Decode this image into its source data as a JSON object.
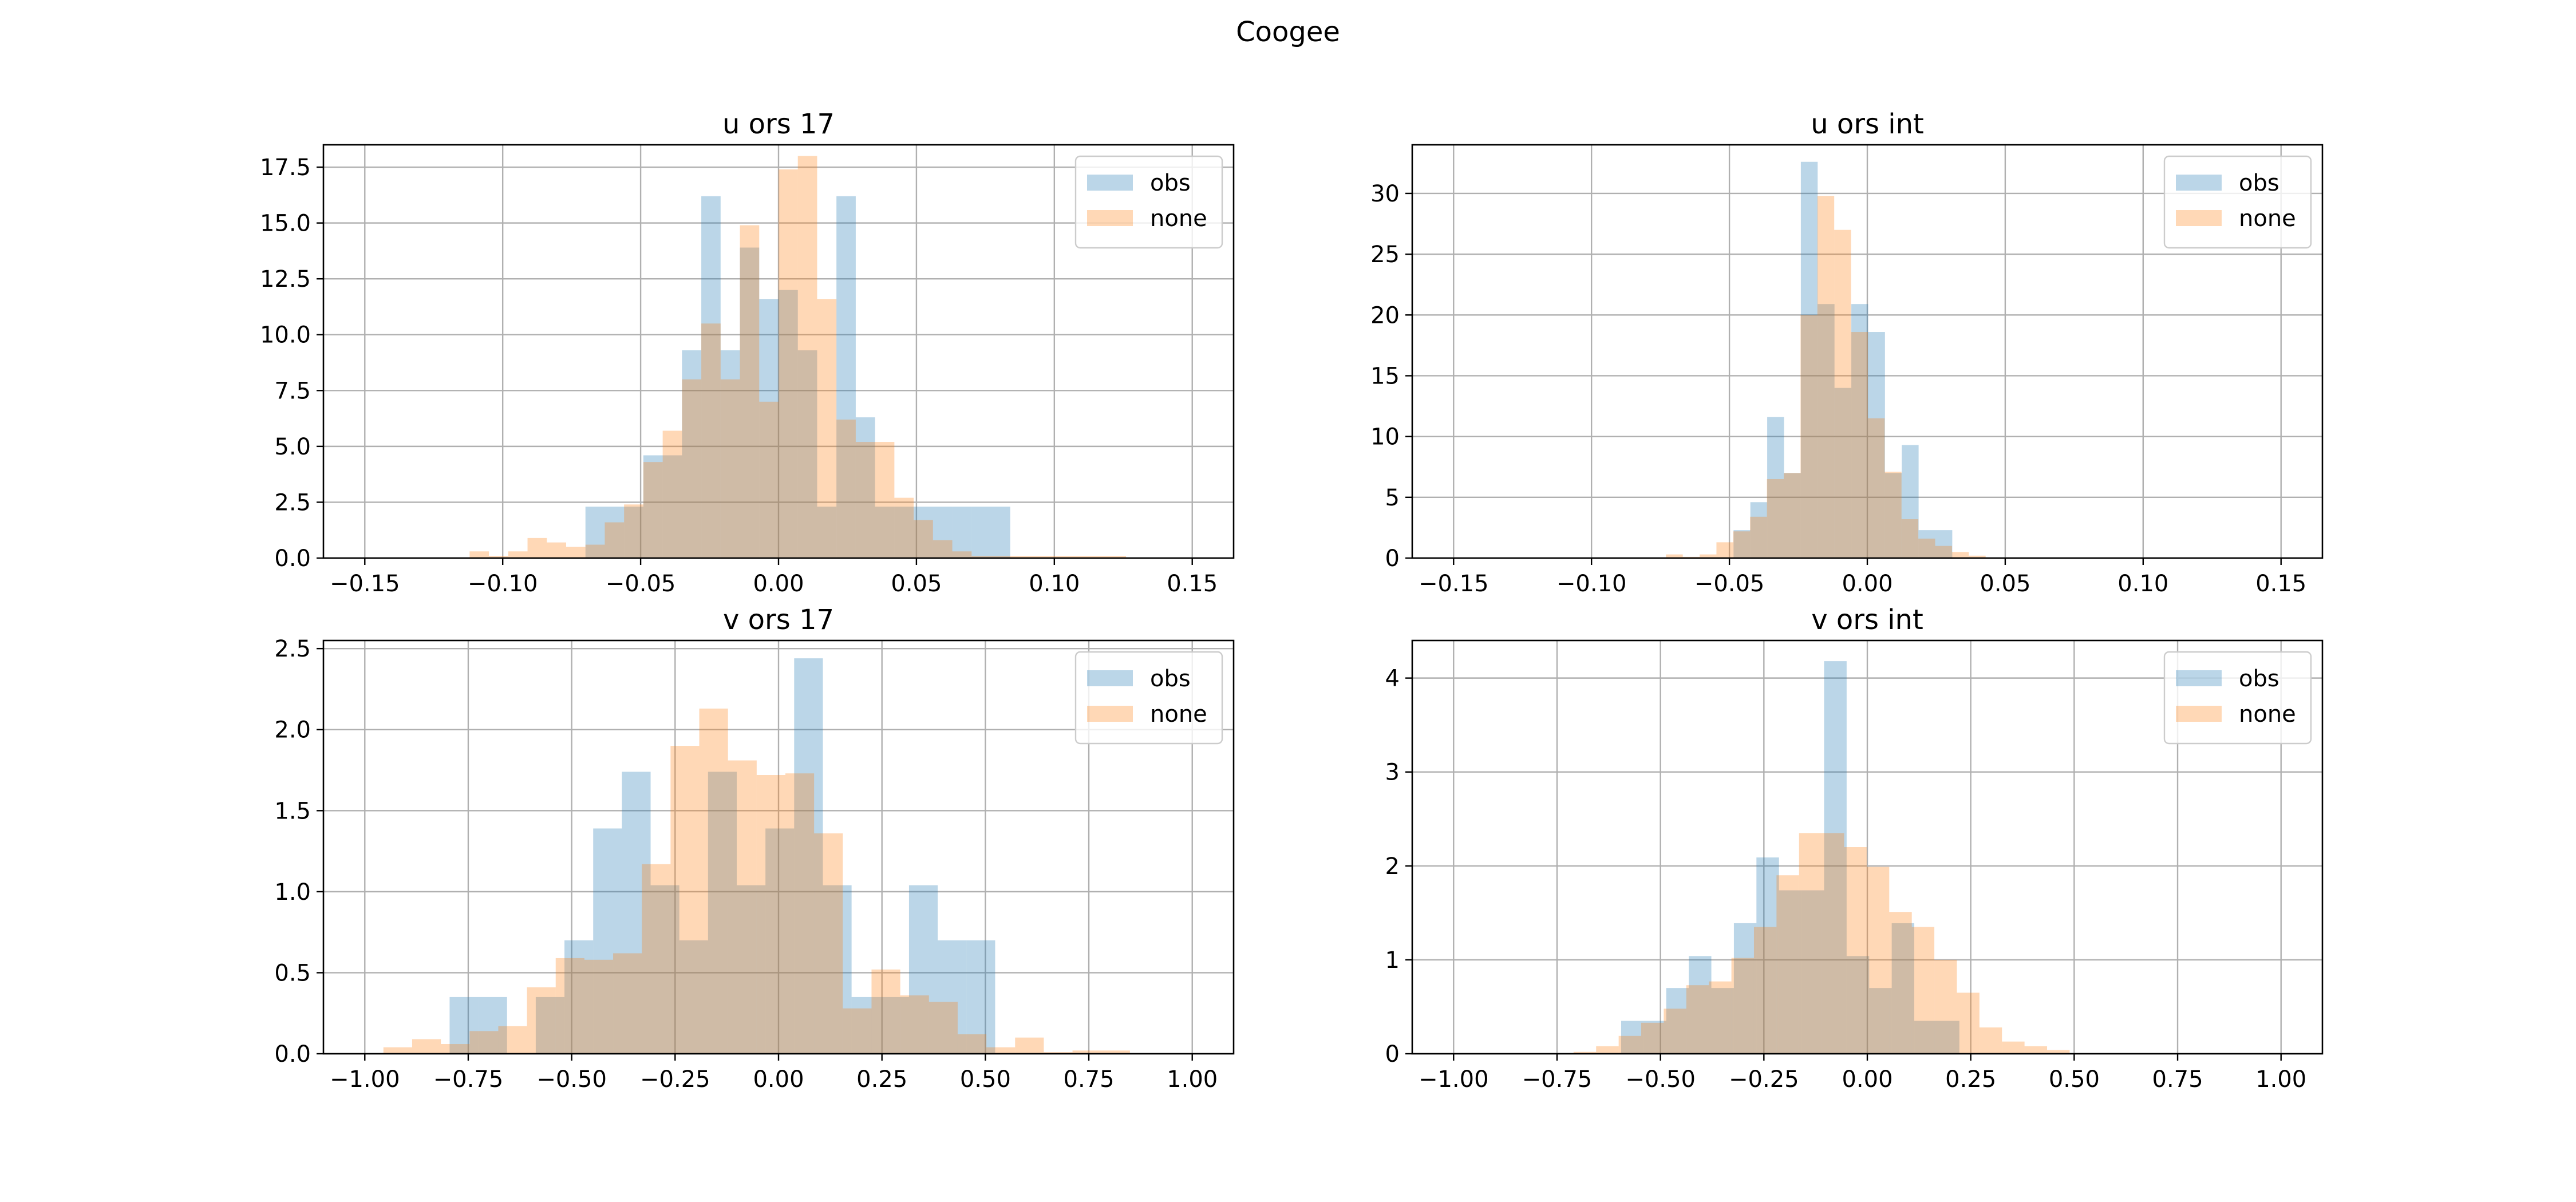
{
  "figure": {
    "title": "Coogee"
  },
  "colors": {
    "obs": "#1f77b4",
    "none": "#ff7f0e",
    "grid": "#b0b0b0"
  },
  "chart_data": [
    {
      "type": "bar",
      "title": "u ors 17",
      "xlim": [
        -0.165,
        0.165
      ],
      "ylim": [
        0,
        18.5
      ],
      "xticks": [
        -0.15,
        -0.1,
        -0.05,
        0.0,
        0.05,
        0.1,
        0.15
      ],
      "xtick_labels": [
        "−0.15",
        "−0.10",
        "−0.05",
        "0.00",
        "0.05",
        "0.10",
        "0.15"
      ],
      "yticks": [
        0,
        2.5,
        5,
        7.5,
        10,
        12.5,
        15,
        17.5
      ],
      "ytick_labels": [
        "0.0",
        "2.5",
        "5.0",
        "7.5",
        "10.0",
        "12.5",
        "15.0",
        "17.5"
      ],
      "grid": true,
      "legend": "upper right",
      "series": [
        {
          "name": "obs",
          "bin_start": -0.07,
          "bin_width": 0.007,
          "values": [
            2.3,
            2.3,
            2.3,
            4.6,
            4.6,
            9.3,
            16.2,
            9.3,
            13.9,
            11.6,
            12.0,
            9.3,
            2.3,
            16.2,
            6.3,
            2.3,
            2.3,
            2.3,
            2.3,
            2.3,
            2.3,
            2.3
          ]
        },
        {
          "name": "none",
          "bin_start": -0.112,
          "bin_width": 0.007,
          "values": [
            0.3,
            0.1,
            0.3,
            0.9,
            0.7,
            0.5,
            0.6,
            1.6,
            2.4,
            4.3,
            5.7,
            8.0,
            10.5,
            8.0,
            14.9,
            7.0,
            17.4,
            18.0,
            11.6,
            6.2,
            5.2,
            5.2,
            2.7,
            1.7,
            0.8,
            0.3,
            0.1,
            0.1,
            0.1,
            0.1,
            0.1,
            0.1,
            0.1,
            0.1
          ]
        }
      ]
    },
    {
      "type": "bar",
      "title": "u ors int",
      "xlim": [
        -0.165,
        0.165
      ],
      "ylim": [
        0,
        34
      ],
      "xticks": [
        -0.15,
        -0.1,
        -0.05,
        0.0,
        0.05,
        0.1,
        0.15
      ],
      "xtick_labels": [
        "−0.15",
        "−0.10",
        "−0.05",
        "0.00",
        "0.05",
        "0.10",
        "0.15"
      ],
      "yticks": [
        0,
        5,
        10,
        15,
        20,
        25,
        30
      ],
      "ytick_labels": [
        "0",
        "5",
        "10",
        "15",
        "20",
        "25",
        "30"
      ],
      "grid": true,
      "legend": "upper right",
      "series": [
        {
          "name": "obs",
          "bin_start": -0.0485,
          "bin_width": 0.0061,
          "values": [
            2.3,
            4.6,
            11.6,
            7.0,
            32.6,
            20.9,
            14.0,
            20.9,
            18.6,
            7.0,
            9.3,
            2.3,
            2.3
          ]
        },
        {
          "name": "none",
          "bin_start": -0.073,
          "bin_width": 0.0061,
          "values": [
            0.3,
            0.1,
            0.3,
            1.3,
            2.2,
            3.4,
            6.5,
            7.0,
            20.0,
            29.8,
            27.0,
            18.6,
            11.5,
            7.1,
            3.2,
            1.6,
            1.0,
            0.5,
            0.2
          ]
        }
      ]
    },
    {
      "type": "bar",
      "title": "v ors 17",
      "xlim": [
        -1.1,
        1.1
      ],
      "ylim": [
        0,
        2.55
      ],
      "xticks": [
        -1.0,
        -0.75,
        -0.5,
        -0.25,
        0.0,
        0.25,
        0.5,
        0.75,
        1.0
      ],
      "xtick_labels": [
        "−1.00",
        "−0.75",
        "−0.50",
        "−0.25",
        "0.00",
        "0.25",
        "0.50",
        "0.75",
        "1.00"
      ],
      "yticks": [
        0,
        0.5,
        1.0,
        1.5,
        2.0,
        2.5
      ],
      "ytick_labels": [
        "0.0",
        "0.5",
        "1.0",
        "1.5",
        "2.0",
        "2.5"
      ],
      "grid": true,
      "legend": "upper right",
      "series": [
        {
          "name": "obs",
          "bin_start": -0.795,
          "bin_width": 0.0694,
          "values": [
            0.35,
            0.35,
            0.0,
            0.35,
            0.7,
            1.39,
            1.74,
            1.04,
            0.7,
            1.74,
            1.04,
            1.39,
            2.44,
            1.04,
            0.35,
            0.35,
            1.04,
            0.7,
            0.7
          ]
        },
        {
          "name": "none",
          "bin_start": -0.955,
          "bin_width": 0.0694,
          "values": [
            0.04,
            0.09,
            0.06,
            0.14,
            0.17,
            0.41,
            0.59,
            0.58,
            0.62,
            1.17,
            1.9,
            2.13,
            1.81,
            1.72,
            1.73,
            1.36,
            0.28,
            0.52,
            0.36,
            0.32,
            0.12,
            0.04,
            0.1,
            0.01,
            0.02,
            0.02
          ]
        }
      ]
    },
    {
      "type": "bar",
      "title": "v ors int",
      "xlim": [
        -1.1,
        1.1
      ],
      "ylim": [
        0,
        4.4
      ],
      "xticks": [
        -1.0,
        -0.75,
        -0.5,
        -0.25,
        0.0,
        0.25,
        0.5,
        0.75,
        1.0
      ],
      "xtick_labels": [
        "−1.00",
        "−0.75",
        "−0.50",
        "−0.25",
        "0.00",
        "0.25",
        "0.50",
        "0.75",
        "1.00"
      ],
      "yticks": [
        0,
        1,
        2,
        3,
        4
      ],
      "ytick_labels": [
        "0",
        "1",
        "2",
        "3",
        "4"
      ],
      "grid": true,
      "legend": "upper right",
      "series": [
        {
          "name": "obs",
          "bin_start": -0.595,
          "bin_width": 0.0545,
          "values": [
            0.35,
            0.35,
            0.7,
            1.04,
            0.7,
            1.39,
            2.09,
            1.74,
            1.74,
            4.18,
            1.04,
            0.7,
            1.39,
            0.35,
            0.35
          ]
        },
        {
          "name": "none",
          "bin_start": -0.71,
          "bin_width": 0.0545,
          "values": [
            0.02,
            0.08,
            0.19,
            0.33,
            0.48,
            0.73,
            0.77,
            1.02,
            1.35,
            1.9,
            2.35,
            2.35,
            2.2,
            1.99,
            1.51,
            1.35,
            1.0,
            0.65,
            0.28,
            0.13,
            0.08,
            0.04
          ]
        }
      ]
    }
  ]
}
